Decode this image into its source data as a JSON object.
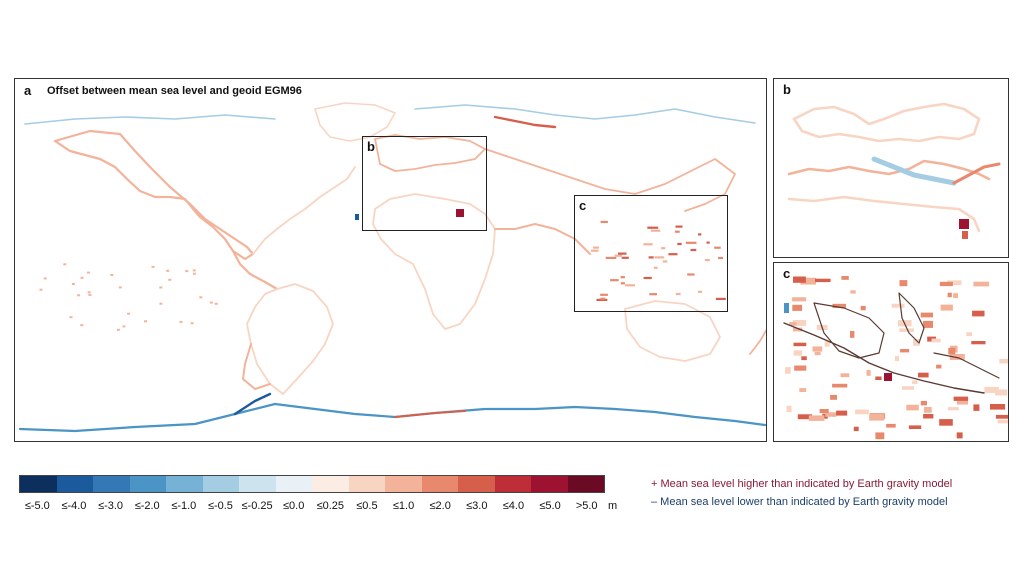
{
  "panel_a": {
    "letter": "a",
    "title": "Offset between mean sea level and geoid EGM96"
  },
  "inset_b": {
    "letter": "b"
  },
  "inset_c": {
    "letter": "c"
  },
  "panel_b": {
    "letter": "b"
  },
  "panel_c": {
    "letter": "c"
  },
  "colorbar": {
    "colors": [
      "#0d2f5e",
      "#1c5a9e",
      "#3478b5",
      "#4b94c6",
      "#75b2d6",
      "#a4cde4",
      "#cde3ef",
      "#eaf1f6",
      "#fbece4",
      "#f8d5c3",
      "#f2b39a",
      "#e8896d",
      "#d65f4c",
      "#bd2e38",
      "#9c1230",
      "#6b0a24"
    ],
    "labels": [
      "≤-5.0",
      "≤-4.0",
      "≤-3.0",
      "≤-2.0",
      "≤-1.0",
      "≤-0.5",
      "≤-0.25",
      "≤0.0",
      "≤0.25",
      "≤0.5",
      "≤1.0",
      "≤2.0",
      "≤3.0",
      "≤4.0",
      "≤5.0",
      ">5.0"
    ],
    "unit": "m"
  },
  "legend": {
    "higher": "+ Mean sea level higher than indicated by Earth gravity model",
    "lower": "– Mean sea level lower than indicated by Earth gravity model"
  }
}
